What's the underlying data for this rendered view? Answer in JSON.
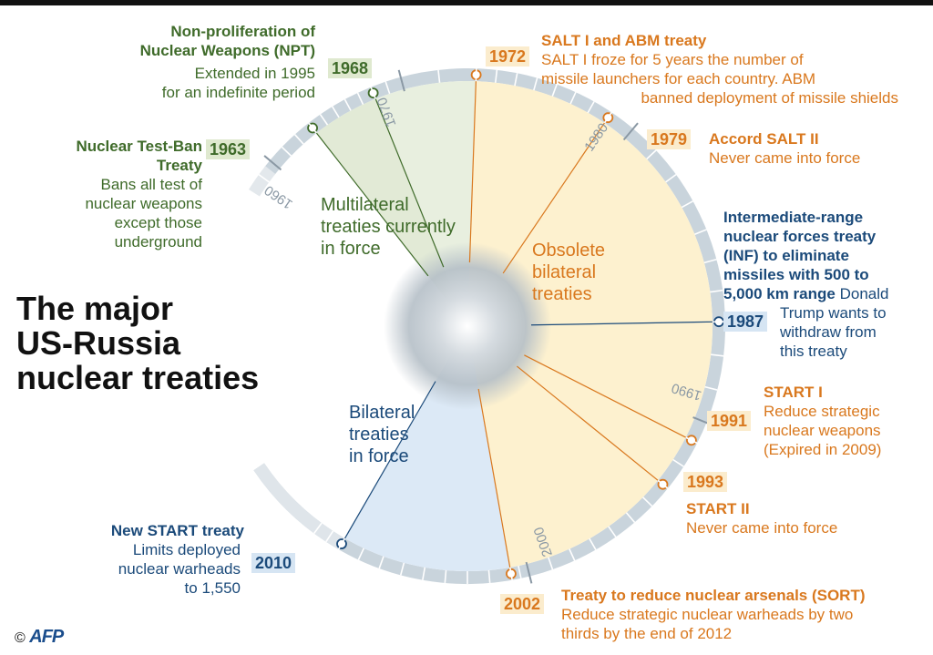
{
  "title": [
    "The major",
    "US-Russia",
    "nuclear treaties"
  ],
  "decades": [
    "1960",
    "1970",
    "1980",
    "1990",
    "2000"
  ],
  "regions": {
    "multilateral": [
      "Multilateral",
      "treaties currently",
      "in force"
    ],
    "obsolete": [
      "Obsolete",
      "bilateral",
      "treaties"
    ],
    "bilateral": [
      "Bilateral",
      "treaties",
      "in force"
    ]
  },
  "treaties": {
    "npt": {
      "year": "1968",
      "name": [
        "Non-proliferation of",
        "Nuclear Weapons (NPT)"
      ],
      "desc": [
        "Extended in 1995",
        "for an indefinite period"
      ]
    },
    "test_ban": {
      "year": "1963",
      "name": [
        "Nuclear Test-Ban",
        "Treaty"
      ],
      "desc": [
        "Bans all test of",
        "nuclear weapons",
        "except those",
        "underground"
      ]
    },
    "salt1": {
      "year": "1972",
      "name": [
        "SALT I and  ABM treaty"
      ],
      "desc": [
        "SALT I froze for 5 years the number of",
        "missile launchers for each country. ABM",
        "banned deployment of missile shields"
      ]
    },
    "salt2": {
      "year": "1979",
      "name": [
        "Accord  SALT II"
      ],
      "desc": [
        "Never came into force"
      ]
    },
    "inf": {
      "year": "1987",
      "name": [
        "Intermediate-range",
        "nuclear forces treaty",
        "(INF) to eliminate",
        " missiles with 500 to",
        "5,000 km range"
      ],
      "desc": [
        "Donald",
        "Trump wants to",
        "withdraw from",
        " this treaty"
      ]
    },
    "start1": {
      "year": "1991",
      "name": [
        "START I"
      ],
      "desc": [
        "Reduce strategic",
        "nuclear weapons",
        "(Expired in 2009)"
      ]
    },
    "start2": {
      "year": "1993",
      "name": [
        "START II"
      ],
      "desc": [
        "Never came into force"
      ]
    },
    "sort": {
      "year": "2002",
      "name": [
        "Treaty to reduce nuclear arsenals (SORT)"
      ],
      "desc": [
        "Reduce strategic nuclear warheads by two",
        "thirds by the end of 2012"
      ]
    },
    "new_start": {
      "year": "2010",
      "name": [
        "New START treaty"
      ],
      "desc": [
        "Limits deployed",
        "nuclear warheads",
        "to 1,550"
      ]
    }
  },
  "credit": {
    "copyright": "©",
    "logo": "AFP"
  },
  "colors": {
    "green": "#3f6b2a",
    "orange": "#d9781e",
    "blue": "#1b4a7a",
    "ring": "#c9d4dc"
  }
}
